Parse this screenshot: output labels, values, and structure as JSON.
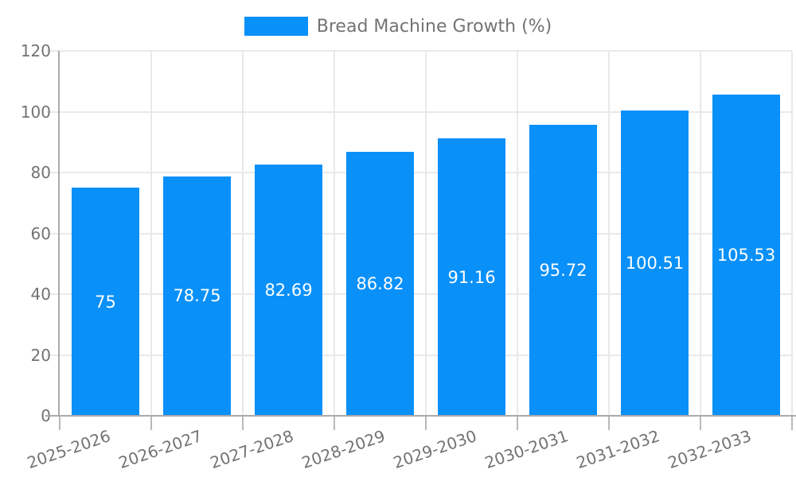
{
  "legend": {
    "label": "Bread Machine Growth (%)"
  },
  "chart_data": {
    "type": "bar",
    "title": "Bread Machine Growth (%)",
    "legend_label": "Bread Machine Growth (%)",
    "legend_position": "top",
    "categories": [
      "2025-2026",
      "2026-2027",
      "2027-2028",
      "2028-2029",
      "2029-2030",
      "2030-2031",
      "2031-2032",
      "2032-2033"
    ],
    "values": [
      75,
      78.75,
      82.69,
      86.82,
      91.16,
      95.72,
      100.51,
      105.53
    ],
    "value_labels": [
      "75",
      "78.75",
      "82.69",
      "86.82",
      "91.16",
      "95.72",
      "100.51",
      "105.53"
    ],
    "xlabel": "",
    "ylabel": "",
    "ylim": [
      0,
      120
    ],
    "ytick_step": 20,
    "ytick_labels": [
      "0",
      "20",
      "40",
      "60",
      "80",
      "100",
      "120"
    ],
    "grid": true,
    "colors": {
      "bar": "#0990f9",
      "axis_text": "#737373",
      "grid_line": "#e9e9e9",
      "axis_line": "#aaaaaa",
      "value_label": "#ffffff"
    }
  }
}
